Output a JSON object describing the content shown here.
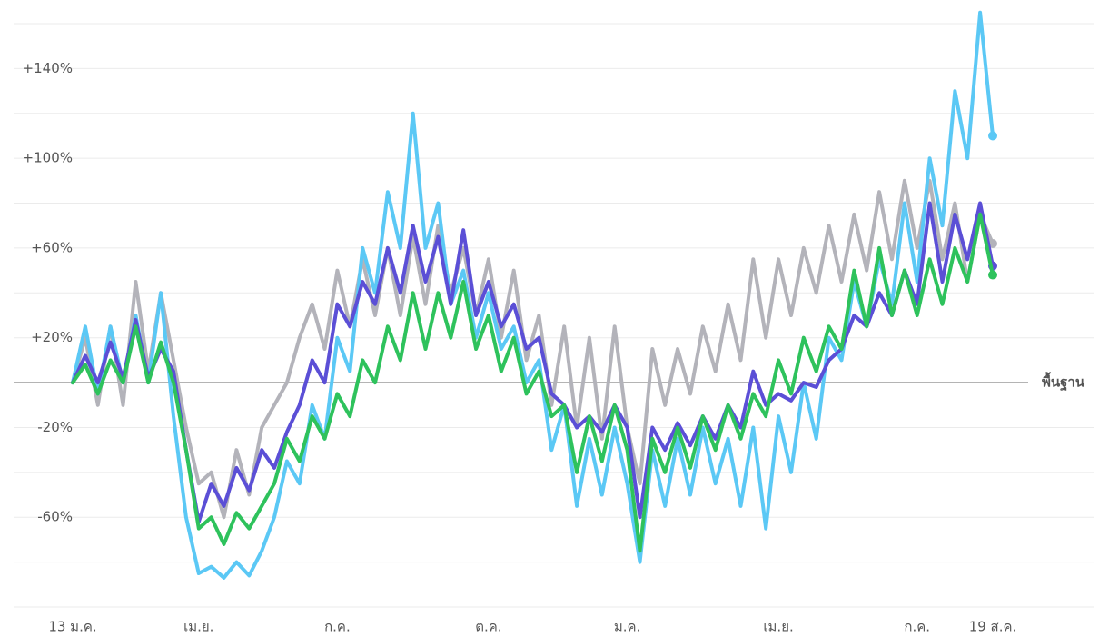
{
  "chart_data": {
    "type": "line",
    "categories": [
      "13 ม.ค.",
      null,
      null,
      null,
      null,
      null,
      null,
      null,
      null,
      null,
      "เม.ย.",
      null,
      null,
      null,
      null,
      null,
      null,
      null,
      null,
      null,
      null,
      "ก.ค.",
      null,
      null,
      null,
      null,
      null,
      null,
      null,
      null,
      null,
      null,
      null,
      "ต.ค.",
      null,
      null,
      null,
      null,
      null,
      null,
      null,
      null,
      null,
      null,
      "ม.ค.",
      null,
      null,
      null,
      null,
      null,
      null,
      null,
      null,
      null,
      null,
      null,
      "เม.ย.",
      null,
      null,
      null,
      null,
      null,
      null,
      null,
      null,
      null,
      null,
      "ก.ค.",
      null,
      null,
      null,
      null,
      null,
      "19 ส.ค."
    ],
    "ylim": [
      -100,
      160
    ],
    "yticks": [
      {
        "value": 140,
        "label": "+140%"
      },
      {
        "value": 100,
        "label": "+100%"
      },
      {
        "value": 60,
        "label": "+60%"
      },
      {
        "value": 20,
        "label": "+20%"
      },
      {
        "value": -20,
        "label": "-20%"
      },
      {
        "value": -60,
        "label": "-60%"
      }
    ],
    "ygrid": [
      -100,
      -80,
      -60,
      -40,
      -20,
      20,
      40,
      60,
      80,
      100,
      120,
      140,
      160
    ],
    "baseline": {
      "value": 0,
      "label": "พื้นฐาน"
    },
    "series": [
      {
        "color": "#b3b3ba",
        "values": [
          0,
          20,
          -10,
          25,
          -10,
          45,
          5,
          40,
          10,
          -20,
          -45,
          -40,
          -60,
          -30,
          -50,
          -20,
          -10,
          0,
          20,
          35,
          15,
          50,
          25,
          55,
          30,
          60,
          30,
          65,
          35,
          70,
          40,
          60,
          30,
          55,
          20,
          50,
          10,
          30,
          -10,
          25,
          -20,
          20,
          -25,
          25,
          -20,
          -45,
          15,
          -10,
          15,
          -5,
          25,
          5,
          35,
          10,
          55,
          20,
          55,
          30,
          60,
          40,
          70,
          45,
          75,
          50,
          85,
          55,
          90,
          60,
          90,
          55,
          80,
          45,
          75,
          62
        ]
      },
      {
        "color": "#5bc8f5",
        "values": [
          0,
          25,
          -5,
          25,
          0,
          30,
          0,
          40,
          -15,
          -60,
          -85,
          -82,
          -87,
          -80,
          -86,
          -75,
          -60,
          -35,
          -45,
          -10,
          -25,
          20,
          5,
          60,
          40,
          85,
          60,
          120,
          60,
          80,
          35,
          50,
          20,
          40,
          15,
          25,
          0,
          10,
          -30,
          -10,
          -55,
          -25,
          -50,
          -20,
          -45,
          -80,
          -30,
          -55,
          -25,
          -50,
          -20,
          -45,
          -25,
          -55,
          -20,
          -65,
          -15,
          -40,
          0,
          -25,
          20,
          10,
          45,
          25,
          55,
          35,
          80,
          45,
          100,
          70,
          130,
          100,
          165,
          110
        ]
      },
      {
        "color": "#5b4fd6",
        "values": [
          0,
          12,
          0,
          18,
          2,
          28,
          2,
          15,
          5,
          -30,
          -62,
          -45,
          -55,
          -38,
          -48,
          -30,
          -38,
          -22,
          -10,
          10,
          0,
          35,
          25,
          45,
          35,
          60,
          40,
          70,
          45,
          65,
          35,
          68,
          30,
          45,
          25,
          35,
          15,
          20,
          -5,
          -10,
          -20,
          -15,
          -22,
          -10,
          -20,
          -60,
          -20,
          -30,
          -18,
          -28,
          -15,
          -25,
          -10,
          -20,
          5,
          -10,
          -5,
          -8,
          0,
          -2,
          10,
          15,
          30,
          25,
          40,
          30,
          50,
          35,
          80,
          45,
          75,
          55,
          80,
          52
        ]
      },
      {
        "color": "#2ec25c",
        "values": [
          0,
          8,
          -5,
          10,
          0,
          25,
          0,
          18,
          0,
          -30,
          -65,
          -60,
          -72,
          -58,
          -65,
          -55,
          -45,
          -25,
          -35,
          -15,
          -25,
          -5,
          -15,
          10,
          0,
          25,
          10,
          40,
          15,
          40,
          20,
          45,
          15,
          30,
          5,
          20,
          -5,
          5,
          -15,
          -10,
          -40,
          -15,
          -35,
          -10,
          -30,
          -75,
          -25,
          -40,
          -20,
          -38,
          -15,
          -30,
          -10,
          -25,
          -5,
          -15,
          10,
          -5,
          20,
          5,
          25,
          15,
          50,
          25,
          60,
          30,
          50,
          30,
          55,
          35,
          60,
          45,
          75,
          48
        ]
      }
    ]
  }
}
